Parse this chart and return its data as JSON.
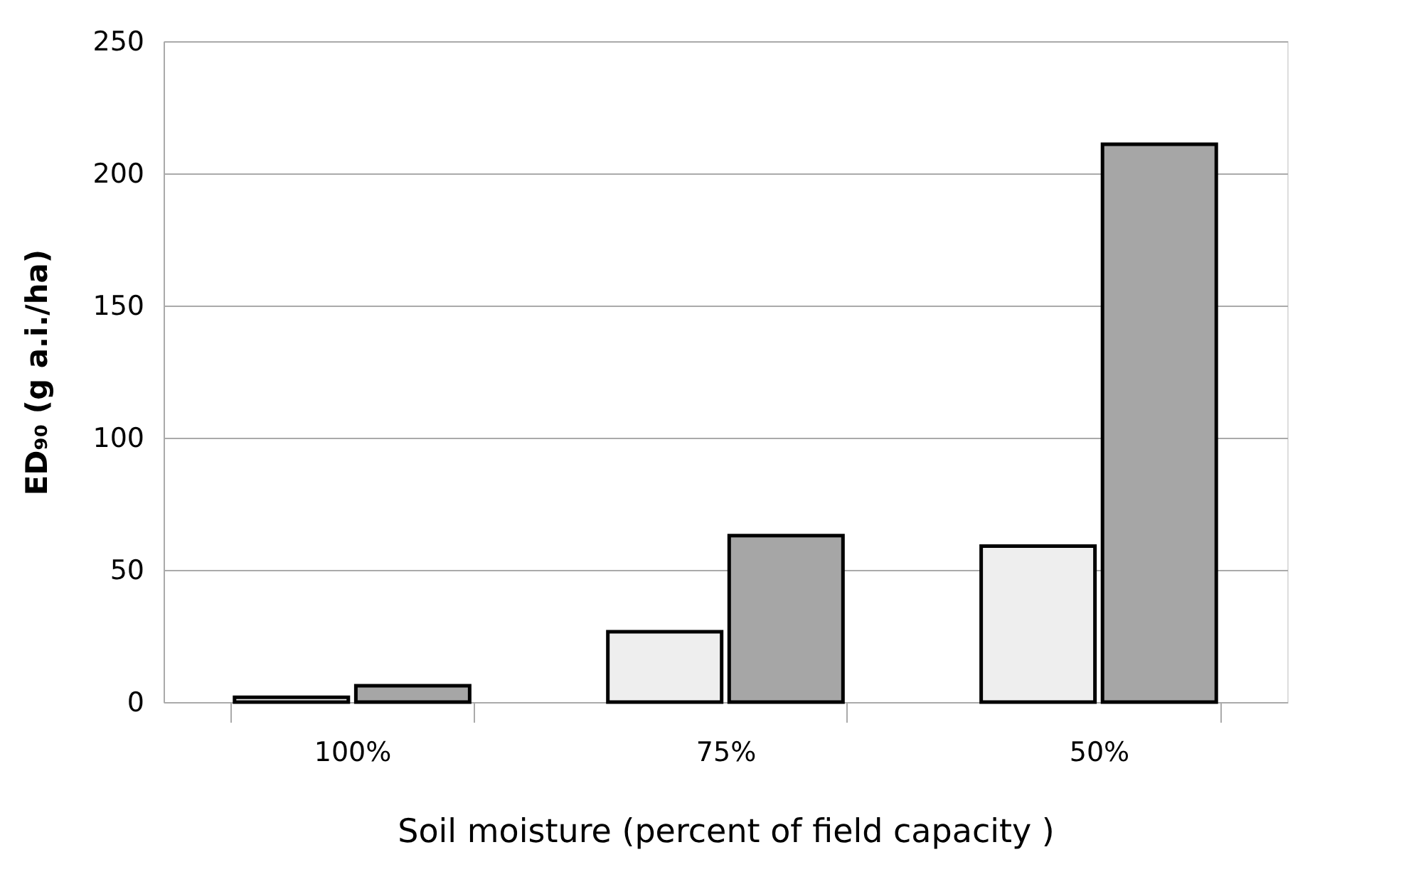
{
  "chart_data": {
    "type": "bar",
    "categories": [
      "100%",
      "75%",
      "50%"
    ],
    "series": [
      {
        "color": "#eeeeee",
        "values": [
          1.8,
          26.6,
          59
        ]
      },
      {
        "color": "#a6a6a6",
        "values": [
          6.2,
          63,
          211
        ]
      }
    ],
    "xlabel": "Soil moisture (percent of field capacity )",
    "ylabel": "ED₉₀ (g a.i./ha)",
    "ylim": [
      0,
      250
    ],
    "yticks": [
      0,
      50,
      100,
      150,
      200,
      250
    ],
    "grid": "y",
    "legend": false
  }
}
